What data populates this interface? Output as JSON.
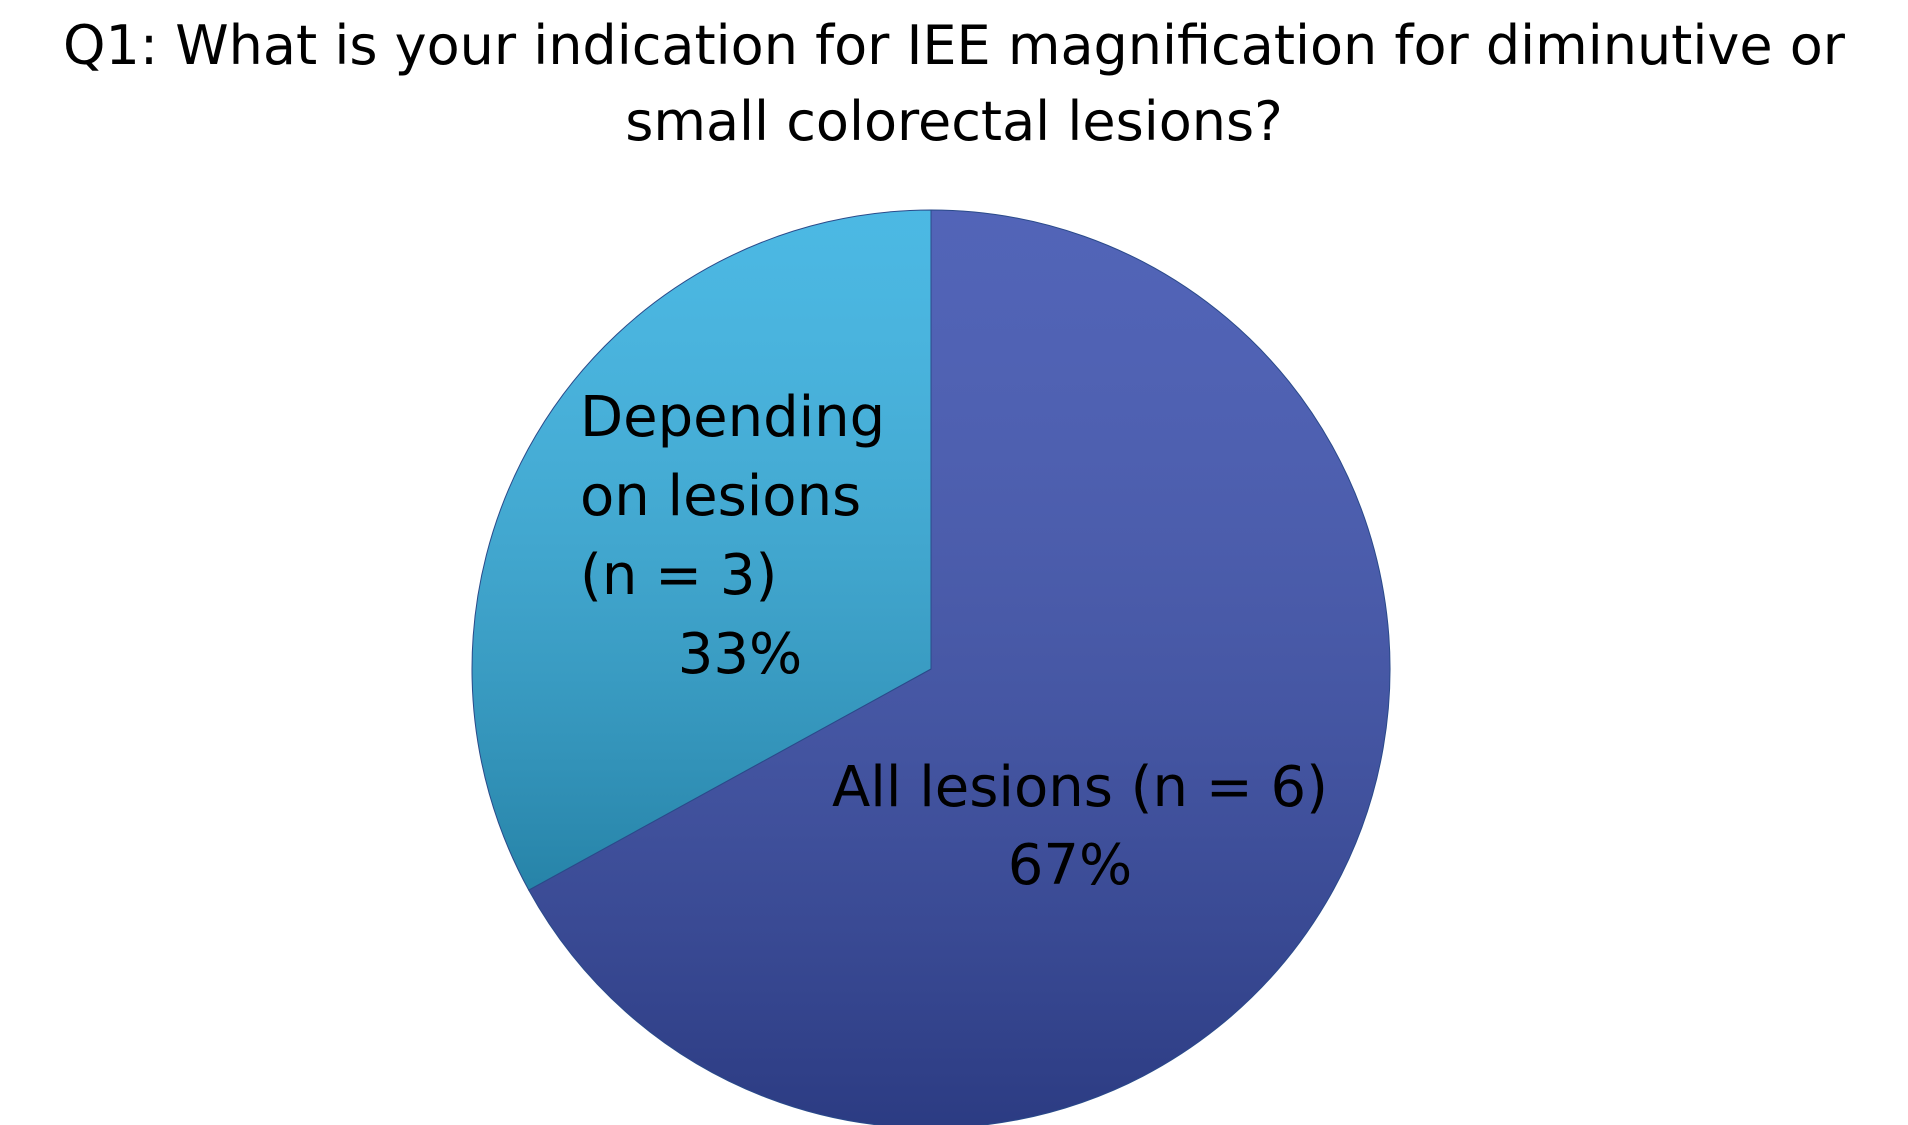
{
  "chart_data": {
    "type": "pie",
    "title": "Q1: What is your indication for IEE magnification for diminutive or small colorectal lesions?",
    "categories": [
      "All lesions (n = 6)",
      "Depending on lesions (n = 3)"
    ],
    "values": [
      67,
      33
    ],
    "value_labels": [
      "67%",
      "33%"
    ],
    "colors": [
      "#3a4fae",
      "#33afe0"
    ]
  }
}
